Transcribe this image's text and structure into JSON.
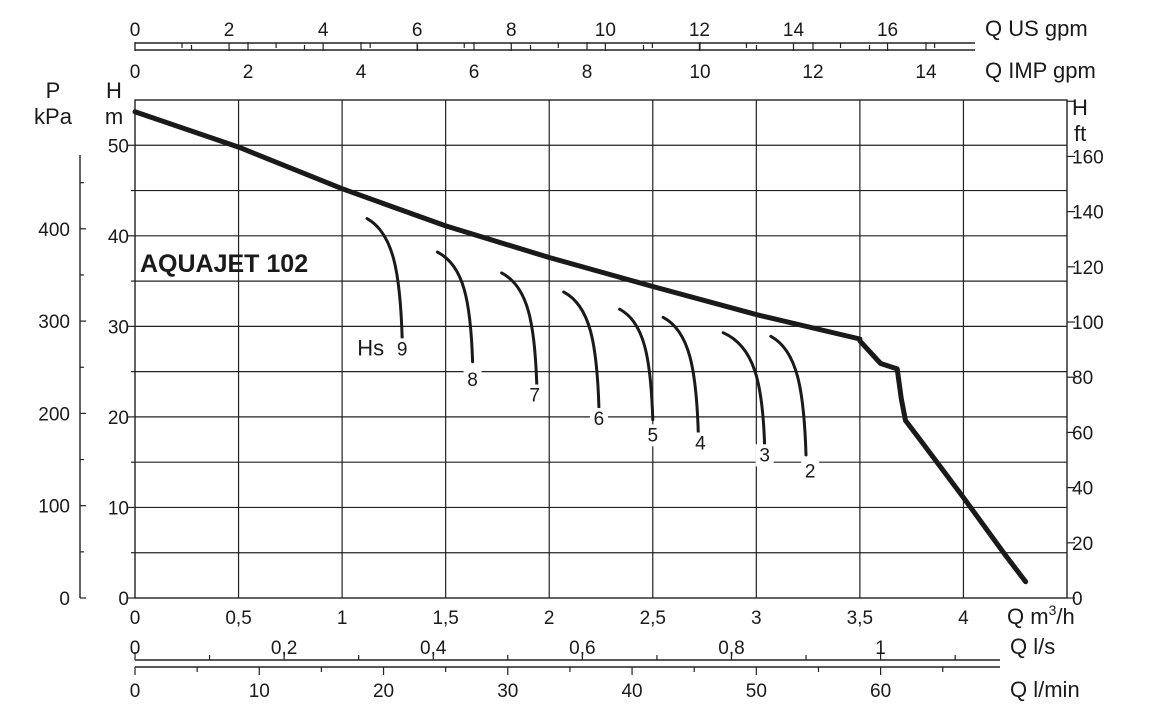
{
  "colors": {
    "curve": "#1a1a1a",
    "grid": "#222222",
    "background": "#ffffff"
  },
  "chart_data": {
    "type": "line",
    "title": "AQUAJET 102",
    "grid": true,
    "x": {
      "label": "Q m³/h",
      "label_base": "Q m",
      "label_sup": "3",
      "label_tail": "/h",
      "range": [
        0,
        4.5
      ],
      "ticks": [
        0,
        0.5,
        1,
        1.5,
        2,
        2.5,
        3,
        3.5,
        4
      ],
      "tick_labels": [
        "0",
        "0,5",
        "1",
        "1,5",
        "2",
        "2,5",
        "3",
        "3,5",
        "4"
      ]
    },
    "y": {
      "label_top": "H",
      "label_bottom": "m",
      "range": [
        0,
        55
      ],
      "ticks": [
        0,
        10,
        20,
        30,
        40,
        50
      ],
      "tick_labels": [
        "0",
        "10",
        "20",
        "30",
        "40",
        "50"
      ]
    },
    "secondary_axes": {
      "pressure": {
        "label_top": "P",
        "label_bottom": "kPa",
        "ticks": [
          0,
          100,
          200,
          300,
          400
        ],
        "tick_labels": [
          "0",
          "100",
          "200",
          "300",
          "400"
        ],
        "minor": [
          50,
          150,
          250,
          350,
          450
        ]
      },
      "feet": {
        "label_top": "H",
        "label_bottom": "ft",
        "ticks": [
          0,
          20,
          40,
          60,
          80,
          100,
          120,
          140,
          160
        ],
        "tick_labels": [
          "0",
          "20",
          "40",
          "60",
          "80",
          "100",
          "120",
          "140",
          "160"
        ],
        "extra_ticks": [
          180
        ]
      },
      "us_gpm": {
        "label": "Q US gpm",
        "ticks": [
          0,
          2,
          4,
          6,
          8,
          10,
          12,
          14,
          16
        ],
        "tick_labels": [
          "0",
          "2",
          "4",
          "6",
          "8",
          "10",
          "12",
          "14",
          "16"
        ],
        "minor": [
          1,
          3,
          5,
          7,
          9,
          11,
          13,
          15,
          17
        ]
      },
      "imp_gpm": {
        "label": "Q IMP gpm",
        "ticks": [
          0,
          2,
          4,
          6,
          8,
          10,
          12,
          14
        ],
        "tick_labels": [
          "0",
          "2",
          "4",
          "6",
          "8",
          "10",
          "12",
          "14"
        ],
        "minor": [
          1,
          3,
          5,
          7,
          9,
          11,
          13,
          15
        ]
      },
      "l_s": {
        "label": "Q l/s",
        "ticks": [
          0,
          0.2,
          0.4,
          0.6,
          0.8,
          1
        ],
        "tick_labels": [
          "0",
          "0,2",
          "0,4",
          "0,6",
          "0,8",
          "1"
        ],
        "minor": [
          0.1,
          0.3,
          0.5,
          0.7,
          0.9,
          1.1
        ]
      },
      "l_min": {
        "label": "Q l/min",
        "ticks": [
          0,
          10,
          20,
          30,
          40,
          50,
          60
        ],
        "tick_labels": [
          "0",
          "10",
          "20",
          "30",
          "40",
          "50",
          "60"
        ],
        "minor": [
          5,
          15,
          25,
          35,
          45,
          55,
          65
        ]
      }
    },
    "series": [
      {
        "points": [
          [
            0,
            53.7
          ],
          [
            0.5,
            49.8
          ],
          [
            1,
            45.2
          ],
          [
            1.5,
            41.1
          ],
          [
            2,
            37.6
          ],
          [
            2.5,
            34.4
          ],
          [
            3,
            31.3
          ],
          [
            3.5,
            28.6
          ],
          [
            3.5,
            28.4
          ],
          [
            3.6,
            25.9
          ],
          [
            3.68,
            25.3
          ],
          [
            3.7,
            22
          ],
          [
            3.72,
            19.6
          ],
          [
            3.8,
            17.2
          ],
          [
            4,
            11.1
          ],
          [
            4.2,
            4.8
          ],
          [
            4.3,
            1.8
          ]
        ]
      }
    ],
    "suction_curves": {
      "prefix": "Hs",
      "curves": [
        {
          "label": "9",
          "start": [
            1.12,
            41.9
          ],
          "end": [
            1.29,
            28.6
          ],
          "label_at": [
            1.29,
            26.8
          ]
        },
        {
          "label": "8",
          "start": [
            1.46,
            38.2
          ],
          "end": [
            1.63,
            26.1
          ],
          "label_at": [
            1.63,
            23.4
          ]
        },
        {
          "label": "7",
          "start": [
            1.77,
            35.9
          ],
          "end": [
            1.94,
            23.5
          ],
          "label_at": [
            1.93,
            21.7
          ]
        },
        {
          "label": "6",
          "start": [
            2.07,
            33.8
          ],
          "end": [
            2.24,
            21.1
          ],
          "label_at": [
            2.24,
            19.1
          ]
        },
        {
          "label": "5",
          "start": [
            2.34,
            31.9
          ],
          "end": [
            2.5,
            19.7
          ],
          "label_at": [
            2.5,
            17.3
          ]
        },
        {
          "label": "4",
          "start": [
            2.55,
            31.0
          ],
          "end": [
            2.72,
            18.2
          ],
          "label_at": [
            2.73,
            16.4
          ]
        },
        {
          "label": "3",
          "start": [
            2.84,
            29.3
          ],
          "end": [
            3.04,
            16.9
          ],
          "label_at": [
            3.04,
            15.1
          ]
        },
        {
          "label": "2",
          "start": [
            3.07,
            28.9
          ],
          "end": [
            3.24,
            15.8
          ],
          "label_at": [
            3.26,
            13.3
          ]
        }
      ]
    }
  }
}
